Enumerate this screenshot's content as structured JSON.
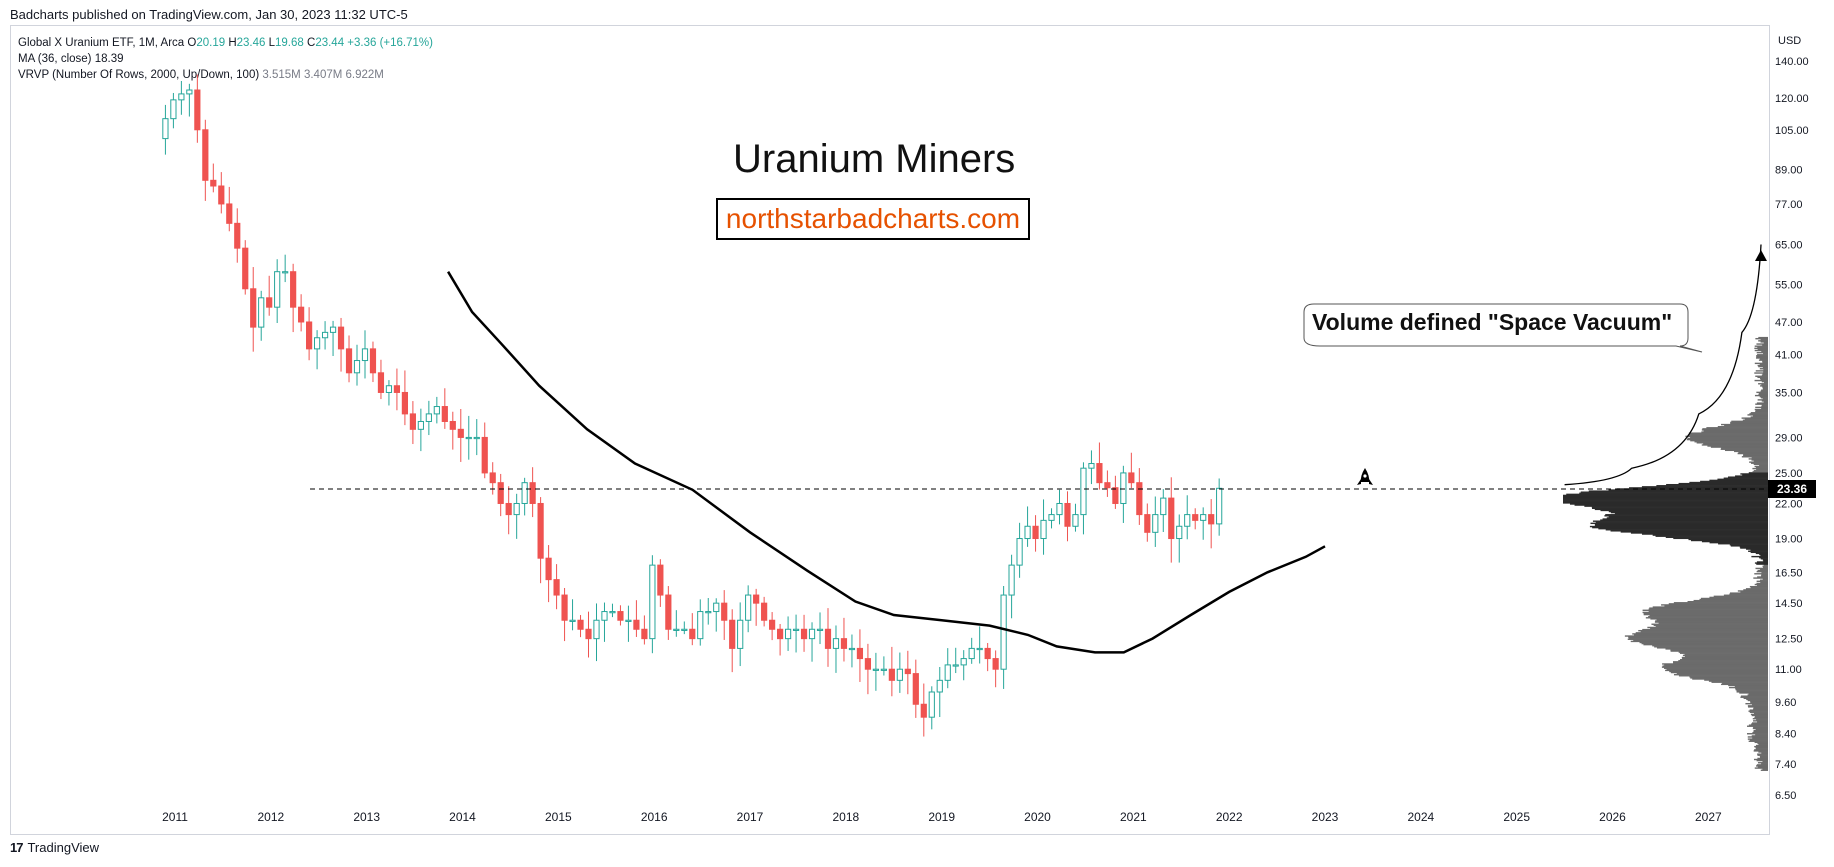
{
  "header": {
    "published": "Badcharts published on TradingView.com, Jan 30, 2023 11:32 UTC-5"
  },
  "legend": {
    "symbol": "Global X Uranium ETF, 1M, Arca",
    "o_label": "O",
    "o_value": "20.19",
    "h_label": "H",
    "h_value": "23.46",
    "l_label": "L",
    "l_value": "19.68",
    "c_label": "C",
    "c_value": "23.44",
    "change": "+3.36 (+16.71%)",
    "ma_label": "MA (36, close)",
    "ma_value": "18.39",
    "vrvp_label": "VRVP (Number Of Rows, 2000, Up/Down, 100)",
    "vrvp_up": "3.515M",
    "vrvp_down": "3.407M",
    "vrvp_total": "6.922M"
  },
  "annotations": {
    "title": "Uranium Miners",
    "website": "northstarbadcharts.com",
    "callout": "Volume defined \"Space Vacuum\"",
    "current_price": "23.36"
  },
  "footer": {
    "brand": "TradingView",
    "logo": "17"
  },
  "colors": {
    "up": "#26a69a",
    "down": "#ef5350",
    "ma": "#000000",
    "site": "#e65100"
  },
  "chart_data": {
    "type": "candlestick",
    "timeframe": "1M",
    "scale": "log",
    "currency": "USD",
    "x_axis_labels": [
      "2011",
      "2012",
      "2013",
      "2014",
      "2015",
      "2016",
      "2017",
      "2018",
      "2019",
      "2020",
      "2021",
      "2022",
      "2023",
      "2024",
      "2025",
      "2026",
      "2027"
    ],
    "y_axis_labels": [
      "140.00",
      "120.00",
      "105.00",
      "89.00",
      "77.00",
      "65.00",
      "55.00",
      "47.00",
      "41.00",
      "35.00",
      "29.00",
      "25.00",
      "22.00",
      "19.00",
      "16.50",
      "14.50",
      "12.50",
      "11.00",
      "9.60",
      "8.40",
      "7.40",
      "6.50"
    ],
    "ylim": [
      6.2,
      165
    ],
    "xlim": [
      2010.0,
      2027.7
    ],
    "horizontal_level": 23.36,
    "series": [
      {
        "name": "XUM monthly close (approx.)",
        "start": 2010.9,
        "step": 0.0833,
        "values": [
          110,
          119,
          122,
          124,
          105,
          85,
          83,
          77,
          71,
          64,
          54,
          46,
          52,
          50,
          58,
          58,
          50,
          47,
          42,
          44,
          45,
          46,
          42,
          38,
          40,
          42,
          38,
          35,
          36,
          35,
          32,
          30,
          31,
          32,
          33,
          31,
          30,
          29,
          29,
          29,
          25,
          24,
          22,
          21,
          22,
          24,
          22,
          17.5,
          16,
          15,
          13.5,
          13.5,
          13,
          12.5,
          13.5,
          14,
          14,
          13.5,
          13.5,
          13,
          12.5,
          17,
          15,
          13,
          13,
          13,
          12.5,
          14,
          14,
          14.5,
          13.5,
          12,
          13.5,
          15,
          14.5,
          13.5,
          13,
          12.5,
          13,
          13,
          12.5,
          13,
          13,
          12,
          12.5,
          12,
          12,
          11.5,
          11,
          11,
          11,
          10.5,
          11,
          10.8,
          9.5,
          9,
          10,
          10.5,
          11.2,
          11.2,
          11.5,
          12,
          12,
          11.5,
          11,
          15,
          17,
          19,
          20,
          19,
          20.5,
          21,
          22,
          20,
          21,
          25.5,
          26,
          24,
          23.5,
          22,
          25,
          24,
          21,
          19.5,
          21,
          22.5,
          19,
          20,
          21,
          20.5,
          21,
          20.2,
          23.44
        ]
      },
      {
        "name": "MA (36, close)",
        "values": [
          [
            2013.85,
            58
          ],
          [
            2014.1,
            49
          ],
          [
            2014.4,
            43
          ],
          [
            2014.8,
            36
          ],
          [
            2015.3,
            30
          ],
          [
            2015.8,
            26
          ],
          [
            2016.4,
            23.3
          ],
          [
            2017.0,
            19.5
          ],
          [
            2017.6,
            16.6
          ],
          [
            2018.1,
            14.6
          ],
          [
            2018.5,
            13.8
          ],
          [
            2019.0,
            13.5
          ],
          [
            2019.5,
            13.2
          ],
          [
            2019.9,
            12.7
          ],
          [
            2020.2,
            12.1
          ],
          [
            2020.6,
            11.8
          ],
          [
            2020.9,
            11.8
          ],
          [
            2021.2,
            12.5
          ],
          [
            2021.6,
            13.8
          ],
          [
            2022.0,
            15.2
          ],
          [
            2022.4,
            16.5
          ],
          [
            2022.8,
            17.6
          ],
          [
            2023.0,
            18.39
          ]
        ]
      },
      {
        "name": "Projection arrow",
        "values": [
          [
            2025.5,
            23.8
          ],
          [
            2026.2,
            25.5
          ],
          [
            2026.9,
            32
          ],
          [
            2027.35,
            45
          ],
          [
            2027.55,
            65
          ]
        ]
      }
    ]
  }
}
